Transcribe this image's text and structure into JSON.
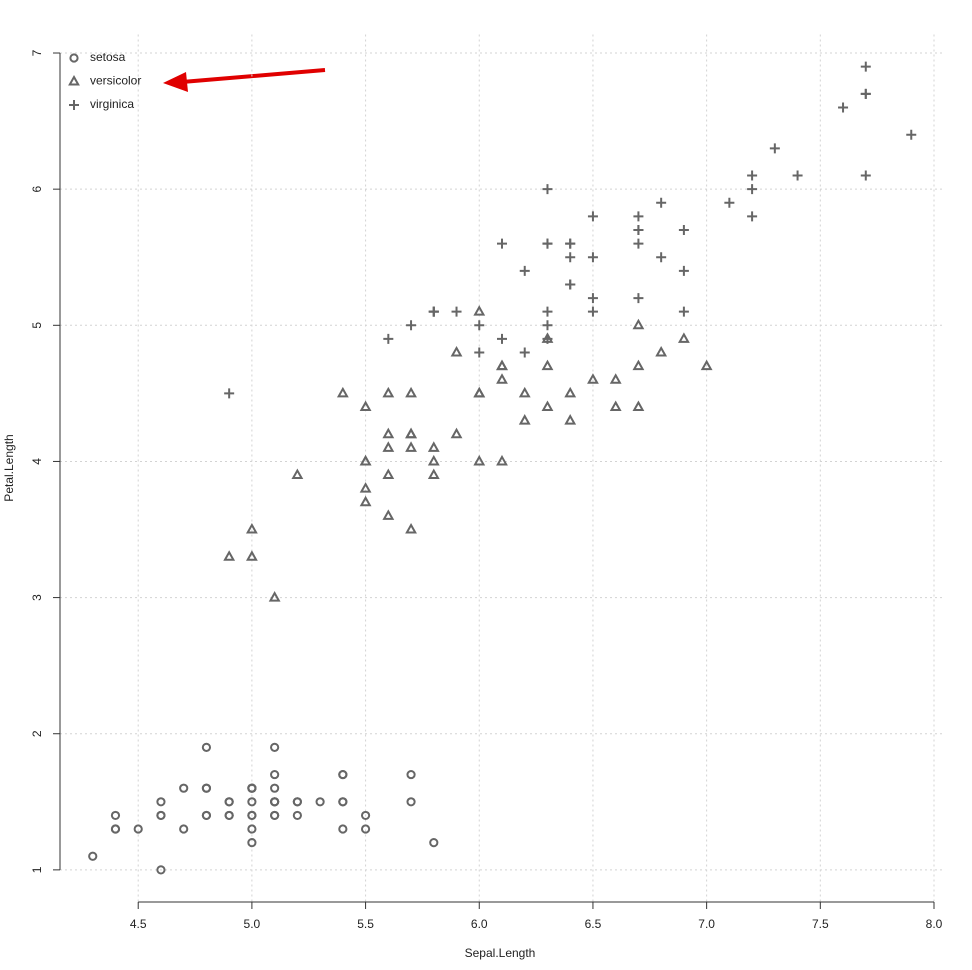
{
  "chart_data": {
    "type": "scatter",
    "x_label": "Sepal.Length",
    "y_label": "Petal.Length",
    "xlim": [
      4.156,
      8.044
    ],
    "ylim": [
      0.764,
      7.136
    ],
    "xticks": [
      4.5,
      {
        "value": 5,
        "label": "5.0"
      },
      5.5,
      {
        "value": 6,
        "label": "6.0"
      },
      6.5,
      {
        "value": 7,
        "label": "7.0"
      },
      7.5,
      {
        "value": 8,
        "label": "8.0"
      }
    ],
    "yticks": [
      1,
      2,
      3,
      4,
      5,
      6,
      7
    ],
    "grid": true,
    "legend": "top-left",
    "series": [
      {
        "name": "setosa",
        "marker": "circle",
        "color": "#666666",
        "x": [
          5.1,
          4.9,
          4.7,
          4.6,
          5.0,
          5.4,
          4.6,
          5.0,
          4.4,
          4.9,
          5.4,
          4.8,
          4.8,
          4.3,
          5.8,
          5.7,
          5.4,
          5.1,
          5.7,
          5.1,
          5.4,
          5.1,
          4.6,
          5.1,
          4.8,
          5.0,
          5.0,
          5.2,
          5.2,
          4.7,
          4.8,
          5.4,
          5.2,
          5.5,
          4.9,
          5.0,
          5.5,
          4.9,
          4.4,
          5.1,
          5.0,
          4.5,
          4.4,
          5.0,
          5.1,
          4.8,
          5.1,
          4.6,
          5.3,
          5.0
        ],
        "values": [
          1.4,
          1.4,
          1.3,
          1.5,
          1.4,
          1.7,
          1.4,
          1.5,
          1.4,
          1.5,
          1.5,
          1.6,
          1.4,
          1.1,
          1.2,
          1.5,
          1.3,
          1.4,
          1.7,
          1.5,
          1.7,
          1.5,
          1.0,
          1.7,
          1.9,
          1.6,
          1.6,
          1.5,
          1.4,
          1.6,
          1.6,
          1.5,
          1.5,
          1.4,
          1.5,
          1.2,
          1.3,
          1.4,
          1.3,
          1.5,
          1.3,
          1.3,
          1.3,
          1.6,
          1.9,
          1.4,
          1.6,
          1.4,
          1.5,
          1.4
        ]
      },
      {
        "name": "versicolor",
        "marker": "triangle",
        "color": "#666666",
        "x": [
          7.0,
          6.4,
          6.9,
          5.5,
          6.5,
          5.7,
          6.3,
          4.9,
          6.6,
          5.2,
          5.0,
          5.9,
          6.0,
          6.1,
          5.6,
          6.7,
          5.6,
          5.8,
          6.2,
          5.6,
          5.9,
          6.1,
          6.3,
          6.1,
          6.4,
          6.6,
          6.8,
          6.7,
          6.0,
          5.7,
          5.5,
          5.5,
          5.8,
          6.0,
          5.4,
          6.0,
          6.7,
          6.3,
          5.6,
          5.5,
          5.5,
          6.1,
          5.8,
          5.0,
          5.6,
          5.7,
          5.7,
          6.2,
          5.1,
          5.7
        ],
        "values": [
          4.7,
          4.5,
          4.9,
          4.0,
          4.6,
          4.5,
          4.7,
          3.3,
          4.6,
          3.9,
          3.5,
          4.2,
          4.0,
          4.7,
          3.6,
          4.4,
          4.5,
          4.1,
          4.5,
          3.9,
          4.8,
          4.0,
          4.9,
          4.7,
          4.3,
          4.4,
          4.8,
          5.0,
          4.5,
          3.5,
          3.8,
          3.7,
          3.9,
          5.1,
          4.5,
          4.5,
          4.7,
          4.4,
          4.1,
          4.0,
          4.4,
          4.6,
          4.0,
          3.3,
          4.2,
          4.2,
          4.2,
          4.3,
          3.0,
          4.1
        ]
      },
      {
        "name": "virginica",
        "marker": "plus",
        "color": "#666666",
        "x": [
          6.3,
          5.8,
          7.1,
          6.3,
          6.5,
          7.6,
          4.9,
          7.3,
          6.7,
          7.2,
          6.5,
          6.4,
          6.8,
          5.7,
          5.8,
          6.4,
          6.5,
          7.7,
          7.7,
          6.0,
          6.9,
          5.6,
          7.7,
          6.3,
          6.7,
          7.2,
          6.2,
          6.1,
          6.4,
          7.2,
          7.4,
          7.9,
          6.4,
          6.3,
          6.1,
          7.7,
          6.3,
          6.4,
          6.0,
          6.9,
          6.7,
          6.9,
          5.8,
          6.8,
          6.7,
          6.7,
          6.3,
          6.5,
          6.2,
          5.9
        ],
        "values": [
          6.0,
          5.1,
          5.9,
          5.6,
          5.8,
          6.6,
          4.5,
          6.3,
          5.8,
          6.1,
          5.1,
          5.3,
          5.5,
          5.0,
          5.1,
          5.3,
          5.5,
          6.7,
          6.9,
          5.0,
          5.7,
          4.9,
          6.7,
          4.9,
          5.7,
          6.0,
          4.8,
          4.9,
          5.6,
          5.8,
          6.1,
          6.4,
          5.6,
          5.1,
          5.6,
          6.1,
          5.6,
          5.5,
          4.8,
          5.4,
          5.6,
          5.1,
          5.1,
          5.9,
          5.7,
          5.2,
          5.0,
          5.2,
          5.4,
          5.1
        ]
      }
    ]
  }
}
